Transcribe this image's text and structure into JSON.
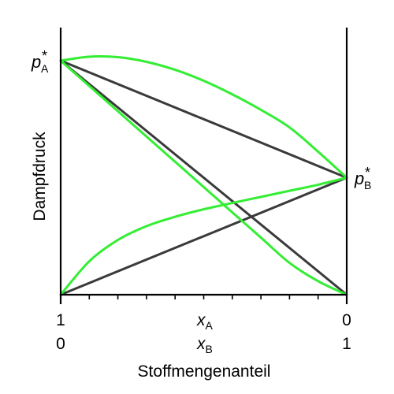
{
  "chart_data": {
    "type": "line",
    "title": "",
    "xlabel": "Stoffmengenanteil",
    "ylabel": "Dampfdruck",
    "x_axis": {
      "var_top_base": "x",
      "var_top_sub": "A",
      "var_bottom_base": "x",
      "var_bottom_sub": "B",
      "top_left_tick": "1",
      "top_right_tick": "0",
      "bottom_left_tick": "0",
      "bottom_right_tick": "1",
      "minor_ticks": 9
    },
    "y_labels": {
      "pA_base": "p",
      "pA_sub": "A",
      "pB_base": "p",
      "pB_sub": "B",
      "star": "*"
    },
    "pA_star": 1.0,
    "pB_star": 0.5,
    "xlim": [
      0,
      1
    ],
    "ylim": [
      0,
      1.05
    ],
    "colors": {
      "ideal": "#3a3a3a",
      "real": "#33ee33",
      "axis": "#000000"
    },
    "series": [
      {
        "kind": "ideal",
        "x": [
          0,
          1
        ],
        "y": [
          1.0,
          0.0
        ]
      },
      {
        "kind": "ideal",
        "x": [
          0,
          1
        ],
        "y": [
          0.0,
          0.5
        ]
      },
      {
        "kind": "ideal",
        "x": [
          0,
          1
        ],
        "y": [
          1.0,
          0.5
        ]
      },
      {
        "kind": "real",
        "x": [
          0,
          0.1,
          0.2,
          0.3,
          0.4,
          0.5,
          0.6,
          0.7,
          0.8,
          0.9,
          1.0
        ],
        "y": [
          1.0,
          0.892,
          0.784,
          0.676,
          0.568,
          0.46,
          0.352,
          0.244,
          0.136,
          0.058,
          0.0
        ]
      },
      {
        "kind": "real",
        "x": [
          0,
          0.1,
          0.2,
          0.3,
          0.4,
          0.5,
          0.6,
          0.7,
          0.8,
          0.9,
          1.0
        ],
        "y": [
          0.0,
          0.143,
          0.234,
          0.293,
          0.333,
          0.365,
          0.392,
          0.418,
          0.444,
          0.47,
          0.5
        ]
      },
      {
        "kind": "real",
        "x": [
          0,
          0.1,
          0.2,
          0.3,
          0.4,
          0.5,
          0.6,
          0.7,
          0.8,
          0.9,
          1.0
        ],
        "y": [
          1.0,
          1.017,
          1.015,
          0.995,
          0.961,
          0.914,
          0.856,
          0.79,
          0.715,
          0.611,
          0.5
        ]
      }
    ]
  }
}
